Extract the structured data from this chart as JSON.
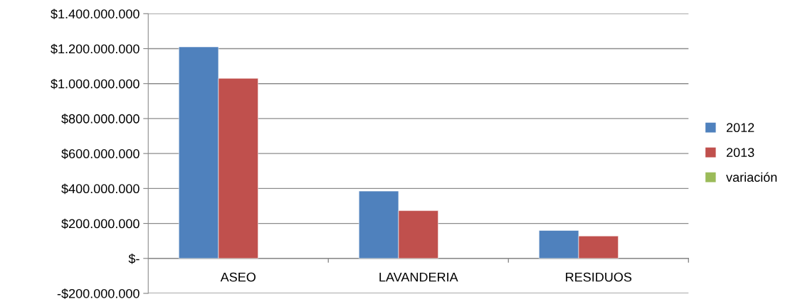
{
  "chart_data": {
    "type": "bar",
    "categories": [
      "ASEO",
      "LAVANDERIA",
      "RESIDUOS"
    ],
    "series": [
      {
        "name": "2012",
        "color": "#4f81bd",
        "values": [
          1210000000,
          385000000,
          160000000
        ]
      },
      {
        "name": "2013",
        "color": "#c0504d",
        "values": [
          1030000000,
          273000000,
          128000000
        ]
      },
      {
        "name": "variación",
        "color": "#9bbb59",
        "values": [
          null,
          null,
          null
        ]
      }
    ],
    "ylim": [
      -200000000,
      1400000000
    ],
    "yticks": [
      {
        "value": -200000000,
        "label": "-$200.000.000"
      },
      {
        "value": 0,
        "label": "$-"
      },
      {
        "value": 200000000,
        "label": "$200.000.000"
      },
      {
        "value": 400000000,
        "label": "$400.000.000"
      },
      {
        "value": 600000000,
        "label": "$600.000.000"
      },
      {
        "value": 800000000,
        "label": "$800.000.000"
      },
      {
        "value": 1000000000,
        "label": "$1.000.000.000"
      },
      {
        "value": 1200000000,
        "label": "$1.200.000.000"
      },
      {
        "value": 1400000000,
        "label": "$1.400.000.000"
      }
    ],
    "grid": "y",
    "legend": "right"
  }
}
